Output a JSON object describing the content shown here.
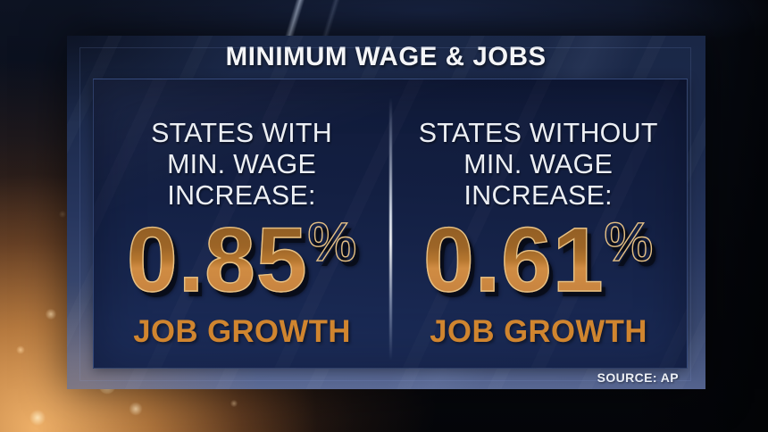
{
  "title": "MINIMUM WAGE & JOBS",
  "source": "SOURCE: AP",
  "panels": [
    {
      "heading_lines": [
        "STATES WITH",
        "MIN. WAGE",
        "INCREASE:"
      ],
      "number": "0.85",
      "percent": "%",
      "caption": "JOB GROWTH"
    },
    {
      "heading_lines": [
        "STATES WITHOUT",
        "MIN. WAGE",
        "INCREASE:"
      ],
      "number": "0.61",
      "percent": "%",
      "caption": "JOB GROWTH"
    }
  ],
  "colors": {
    "accent_orange": "#d0852f",
    "number_face_top": "#9a6226",
    "number_face_bottom": "#c98540",
    "number_rim": "#e6c084",
    "inner_panel_navy": "#16234a",
    "outer_panel_bottom": "#55648f",
    "text_white": "#eceff4",
    "background_glow": "#e8a45f"
  },
  "chart_data": {
    "type": "table",
    "title": "MINIMUM WAGE & JOBS",
    "categories": [
      "STATES WITH MIN. WAGE INCREASE",
      "STATES WITHOUT MIN. WAGE INCREASE"
    ],
    "values": [
      0.85,
      0.61
    ],
    "unit": "% JOB GROWTH",
    "source": "AP",
    "legend_position": "none",
    "grid": false
  }
}
